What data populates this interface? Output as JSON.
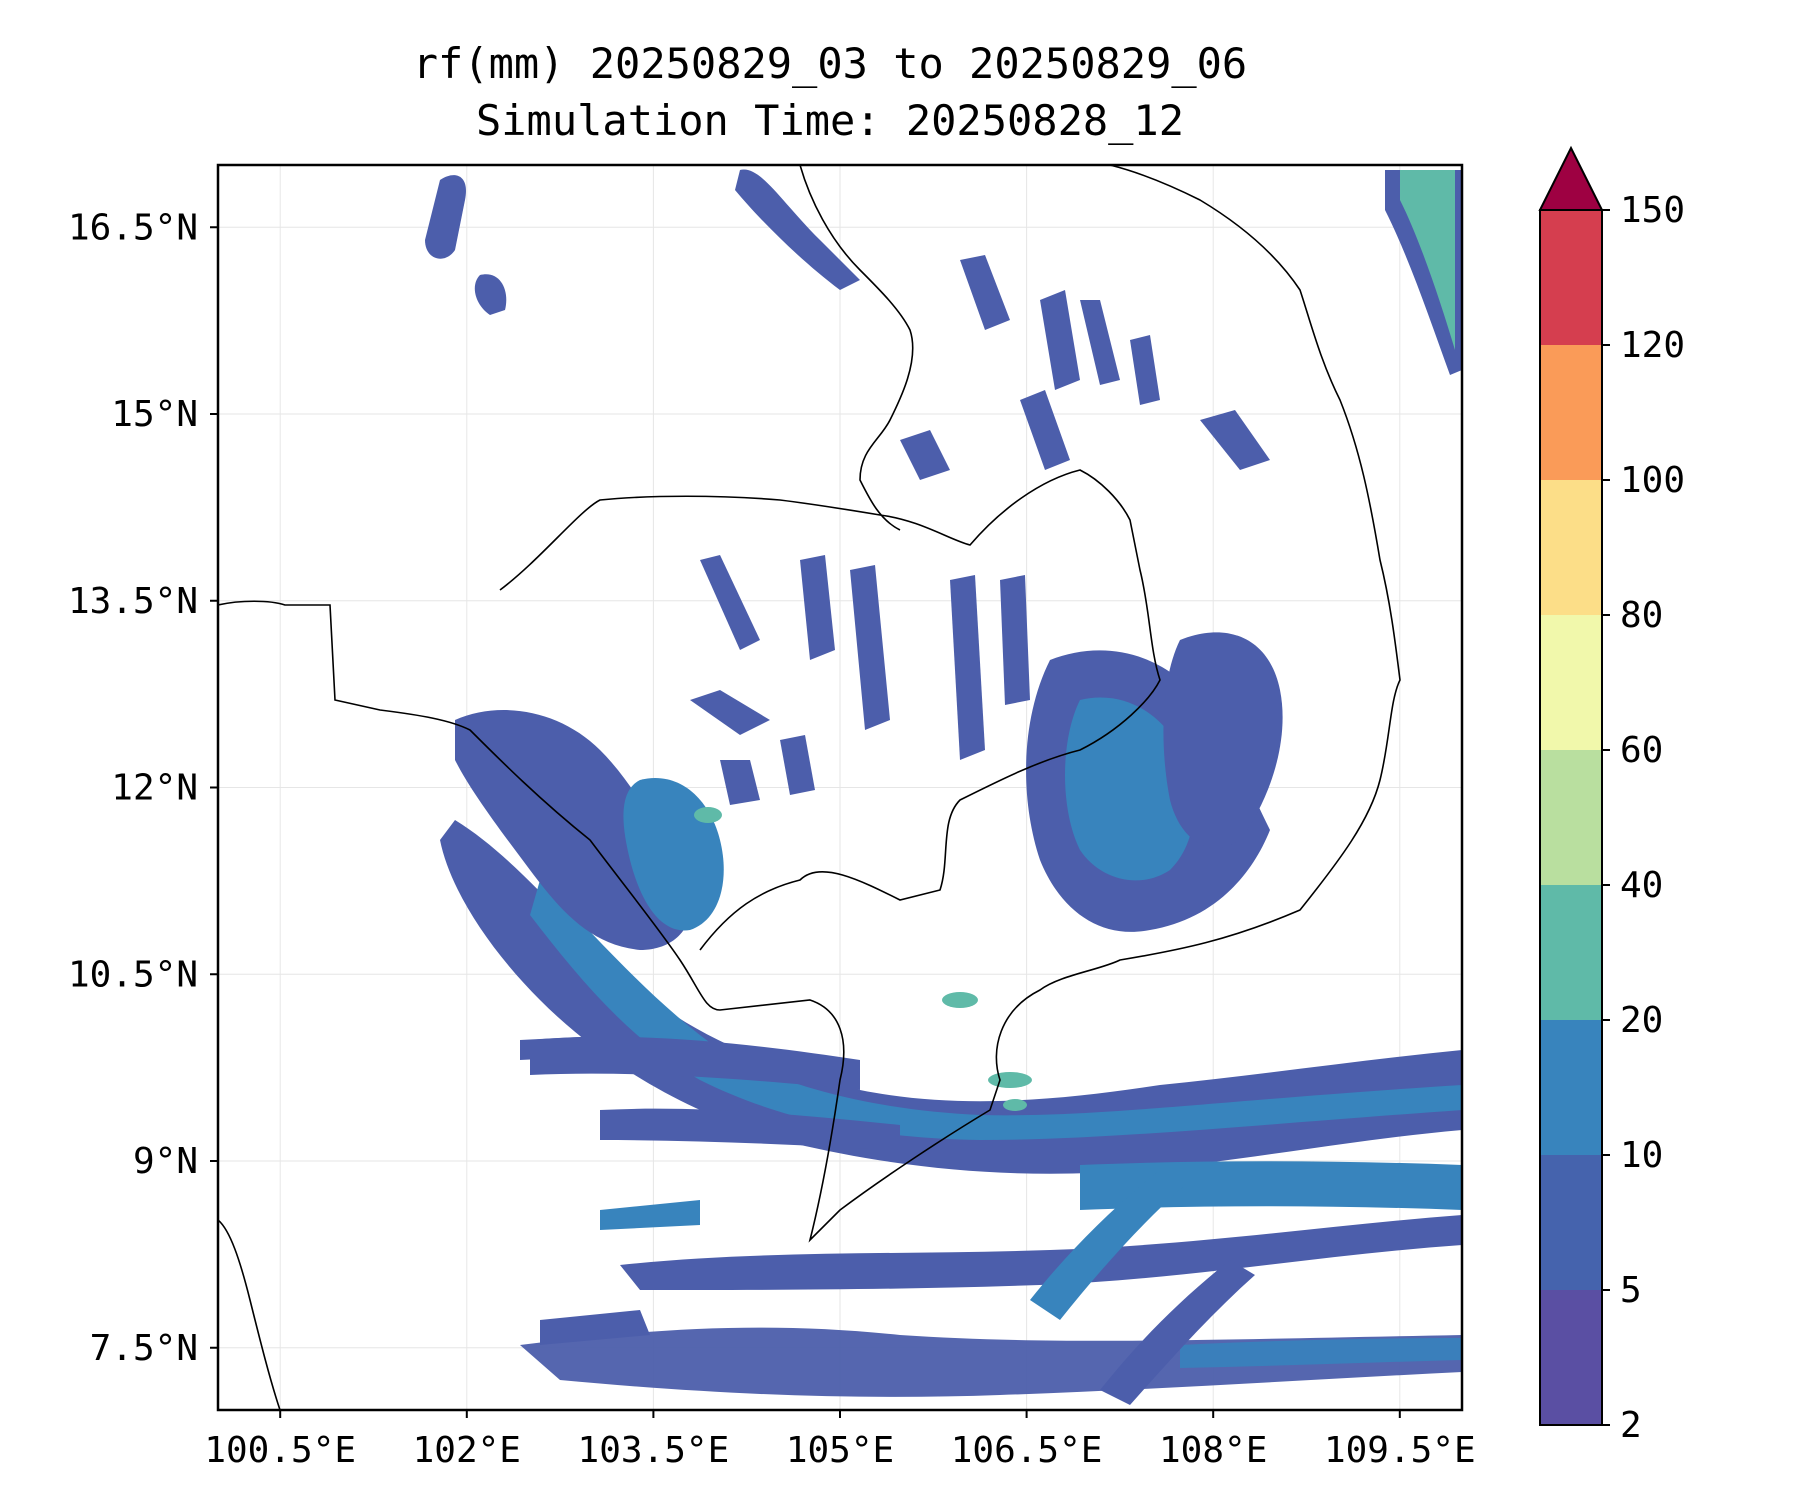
{
  "title_line1": "rf(mm) 20250829_03 to 20250829_06",
  "title_line2": "Simulation Time: 20250828_12",
  "map": {
    "lon_range": [
      100.0,
      110.0
    ],
    "lat_range": [
      7.0,
      17.0
    ],
    "lon_ticks": [
      {
        "value": 100.5,
        "label": "100.5°E"
      },
      {
        "value": 102.0,
        "label": "102°E"
      },
      {
        "value": 103.5,
        "label": "103.5°E"
      },
      {
        "value": 105.0,
        "label": "105°E"
      },
      {
        "value": 106.5,
        "label": "106.5°E"
      },
      {
        "value": 108.0,
        "label": "108°E"
      },
      {
        "value": 109.5,
        "label": "109.5°E"
      }
    ],
    "lat_ticks": [
      {
        "value": 7.5,
        "label": "7.5°N"
      },
      {
        "value": 9.0,
        "label": "9°N"
      },
      {
        "value": 10.5,
        "label": "10.5°N"
      },
      {
        "value": 12.0,
        "label": "12°N"
      },
      {
        "value": 13.5,
        "label": "13.5°N"
      },
      {
        "value": 15.0,
        "label": "15°N"
      },
      {
        "value": 16.5,
        "label": "16.5°N"
      }
    ],
    "grid": true,
    "coastline_color": "#000000"
  },
  "colorbar": {
    "levels": [
      "2",
      "5",
      "10",
      "20",
      "40",
      "60",
      "80",
      "100",
      "120",
      "150"
    ],
    "colors": [
      "#5a4fa3",
      "#4563ad",
      "#3884bd",
      "#5fbaa8",
      "#b9df9f",
      "#f1f8ab",
      "#fcde88",
      "#fa9b58",
      "#d53e4f"
    ],
    "extend_color": "#9e0142",
    "extend": "max",
    "placement": "right"
  }
}
